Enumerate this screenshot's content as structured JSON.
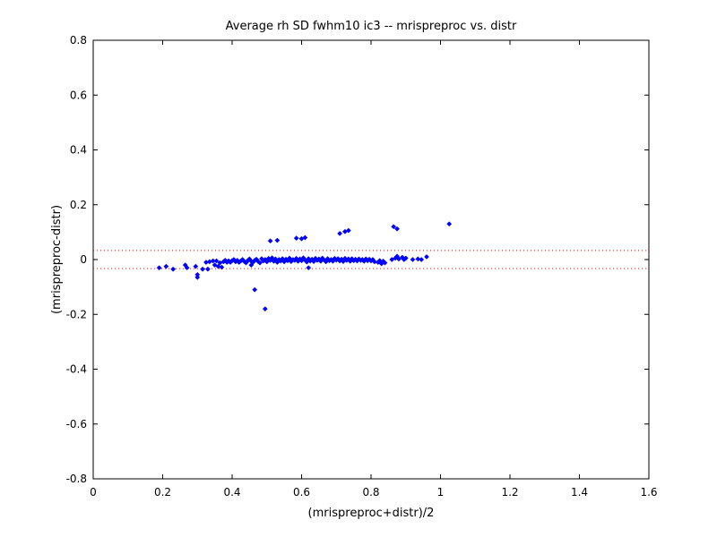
{
  "chart_data": {
    "type": "scatter",
    "title": "Average rh SD fwhm10 ic3 -- mrispreproc vs. distr",
    "xlabel": "(mrispreproc+distr)/2",
    "ylabel": "(mrispreproc-distr)",
    "xlim": [
      0,
      1.6
    ],
    "ylim": [
      -0.8,
      0.8
    ],
    "x_ticks": [
      0,
      0.2,
      0.4,
      0.6,
      0.8,
      1,
      1.2,
      1.4,
      1.6
    ],
    "x_tick_labels": [
      "0",
      "0.2",
      "0.4",
      "0.6",
      "0.8",
      "1",
      "1.2",
      "1.4",
      "1.6"
    ],
    "y_ticks": [
      -0.8,
      -0.6,
      -0.4,
      -0.2,
      0,
      0.2,
      0.4,
      0.6,
      0.8
    ],
    "y_tick_labels": [
      "-0.8",
      "-0.6",
      "-0.4",
      "-0.2",
      "0",
      "0.2",
      "0.4",
      "0.6",
      "0.8"
    ],
    "grid": false,
    "reference_lines": [
      {
        "y": 0.033,
        "style": "dotted",
        "color": "#ff0000"
      },
      {
        "y": -0.033,
        "style": "dotted",
        "color": "#ff0000"
      }
    ],
    "series": [
      {
        "marker": "diamond",
        "color": "#0000ff",
        "points": [
          [
            0.19,
            -0.03
          ],
          [
            0.21,
            -0.025
          ],
          [
            0.23,
            -0.035
          ],
          [
            0.265,
            -0.02
          ],
          [
            0.27,
            -0.03
          ],
          [
            0.295,
            -0.025
          ],
          [
            0.3,
            -0.055
          ],
          [
            0.3,
            -0.065
          ],
          [
            0.315,
            -0.035
          ],
          [
            0.325,
            -0.01
          ],
          [
            0.33,
            -0.035
          ],
          [
            0.335,
            -0.008
          ],
          [
            0.345,
            -0.005
          ],
          [
            0.35,
            -0.02
          ],
          [
            0.355,
            -0.005
          ],
          [
            0.36,
            -0.025
          ],
          [
            0.365,
            -0.012
          ],
          [
            0.37,
            -0.028
          ],
          [
            0.375,
            -0.008
          ],
          [
            0.38,
            -0.003
          ],
          [
            0.385,
            -0.01
          ],
          [
            0.39,
            -0.005
          ],
          [
            0.395,
            -0.01
          ],
          [
            0.4,
            -0.004
          ],
          [
            0.405,
            0.0
          ],
          [
            0.41,
            -0.008
          ],
          [
            0.415,
            -0.003
          ],
          [
            0.42,
            -0.01
          ],
          [
            0.425,
            -0.005
          ],
          [
            0.43,
            0.0
          ],
          [
            0.435,
            -0.007
          ],
          [
            0.44,
            -0.012
          ],
          [
            0.445,
            -0.004
          ],
          [
            0.45,
            0.002
          ],
          [
            0.455,
            -0.006
          ],
          [
            0.46,
            -0.01
          ],
          [
            0.465,
            -0.003
          ],
          [
            0.47,
            0.001
          ],
          [
            0.475,
            -0.007
          ],
          [
            0.48,
            -0.012
          ],
          [
            0.485,
            0.003
          ],
          [
            0.49,
            -0.005
          ],
          [
            0.495,
            0.0
          ],
          [
            0.5,
            -0.008
          ],
          [
            0.505,
            0.004
          ],
          [
            0.51,
            -0.003
          ],
          [
            0.515,
            0.006
          ],
          [
            0.52,
            -0.006
          ],
          [
            0.525,
            0.002
          ],
          [
            0.53,
            -0.01
          ],
          [
            0.535,
            0.0
          ],
          [
            0.54,
            -0.005
          ],
          [
            0.545,
            0.003
          ],
          [
            0.55,
            -0.008
          ],
          [
            0.555,
            0.001
          ],
          [
            0.56,
            -0.004
          ],
          [
            0.565,
            0.005
          ],
          [
            0.57,
            -0.007
          ],
          [
            0.575,
            0.0
          ],
          [
            0.58,
            -0.003
          ],
          [
            0.585,
            0.004
          ],
          [
            0.59,
            -0.006
          ],
          [
            0.595,
            0.002
          ],
          [
            0.6,
            -0.004
          ],
          [
            0.605,
            0.006
          ],
          [
            0.61,
            -0.002
          ],
          [
            0.615,
            -0.009
          ],
          [
            0.62,
            0.003
          ],
          [
            0.625,
            -0.005
          ],
          [
            0.63,
            0.001
          ],
          [
            0.635,
            -0.007
          ],
          [
            0.64,
            0.004
          ],
          [
            0.645,
            -0.003
          ],
          [
            0.65,
            0.002
          ],
          [
            0.655,
            -0.006
          ],
          [
            0.66,
            0.005
          ],
          [
            0.665,
            -0.002
          ],
          [
            0.67,
            -0.008
          ],
          [
            0.675,
            0.003
          ],
          [
            0.68,
            -0.004
          ],
          [
            0.685,
            0.0
          ],
          [
            0.69,
            -0.006
          ],
          [
            0.695,
            0.004
          ],
          [
            0.7,
            -0.002
          ],
          [
            0.705,
            0.003
          ],
          [
            0.71,
            -0.005
          ],
          [
            0.715,
            0.001
          ],
          [
            0.72,
            -0.007
          ],
          [
            0.725,
            0.004
          ],
          [
            0.73,
            -0.003
          ],
          [
            0.735,
            0.002
          ],
          [
            0.74,
            -0.006
          ],
          [
            0.745,
            0.003
          ],
          [
            0.75,
            -0.004
          ],
          [
            0.755,
            0.001
          ],
          [
            0.76,
            -0.005
          ],
          [
            0.765,
            0.002
          ],
          [
            0.77,
            -0.003
          ],
          [
            0.775,
            0.0
          ],
          [
            0.78,
            -0.006
          ],
          [
            0.785,
            0.002
          ],
          [
            0.79,
            -0.004
          ],
          [
            0.795,
            0.001
          ],
          [
            0.8,
            -0.005
          ],
          [
            0.805,
            0.0
          ],
          [
            0.81,
            -0.008
          ],
          [
            0.82,
            -0.01
          ],
          [
            0.825,
            -0.004
          ],
          [
            0.83,
            -0.015
          ],
          [
            0.835,
            -0.006
          ],
          [
            0.84,
            -0.012
          ],
          [
            0.86,
            0.0
          ],
          [
            0.87,
            0.005
          ],
          [
            0.875,
            0.012
          ],
          [
            0.88,
            0.002
          ],
          [
            0.89,
            0.008
          ],
          [
            0.895,
            0.0
          ],
          [
            0.9,
            0.005
          ],
          [
            0.92,
            0.0
          ],
          [
            0.935,
            0.002
          ],
          [
            0.945,
            0.0
          ],
          [
            0.96,
            0.01
          ],
          [
            0.51,
            0.068
          ],
          [
            0.53,
            0.07
          ],
          [
            0.585,
            0.078
          ],
          [
            0.6,
            0.076
          ],
          [
            0.61,
            0.08
          ],
          [
            0.71,
            0.095
          ],
          [
            0.725,
            0.102
          ],
          [
            0.735,
            0.106
          ],
          [
            0.865,
            0.12
          ],
          [
            0.875,
            0.112
          ],
          [
            1.025,
            0.13
          ],
          [
            0.465,
            -0.11
          ],
          [
            0.495,
            -0.18
          ],
          [
            0.62,
            -0.03
          ],
          [
            0.455,
            -0.02
          ]
        ]
      }
    ]
  }
}
